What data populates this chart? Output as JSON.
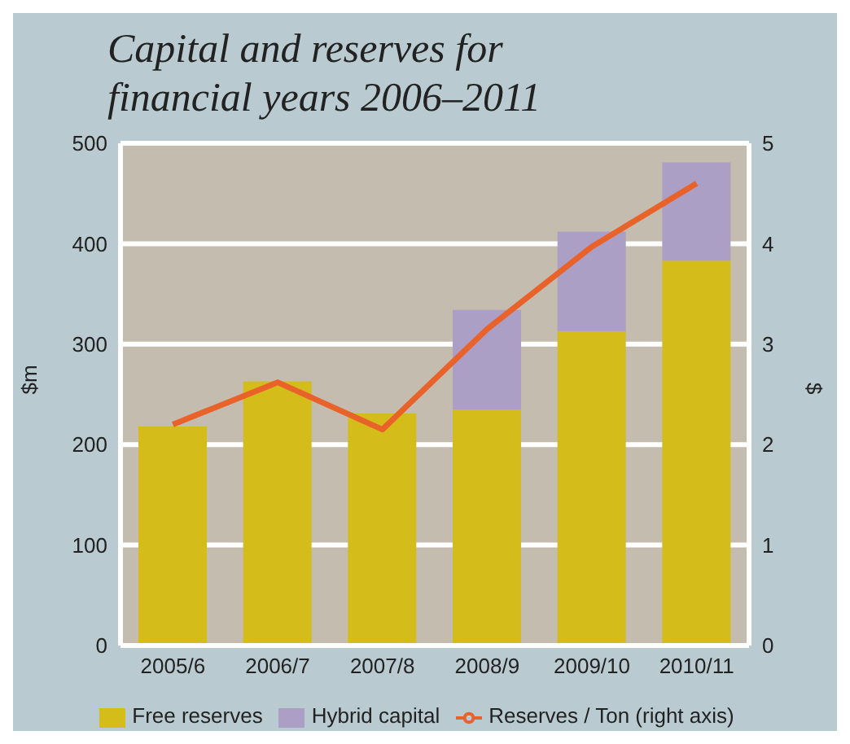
{
  "chart_data": {
    "type": "bar",
    "title": "Capital and reserves for financial years 2006–2011",
    "categories": [
      "2005/6",
      "2006/7",
      "2007/8",
      "2008/9",
      "2009/10",
      "2010/11"
    ],
    "stacked": true,
    "series": [
      {
        "name": "Free reserves",
        "color": "#d4bc1a",
        "values": [
          218,
          263,
          231,
          235,
          313,
          383
        ]
      },
      {
        "name": "Hybrid capital",
        "color": "#ab9fc6",
        "values": [
          null,
          null,
          null,
          99,
          99,
          98
        ]
      },
      {
        "name": "Reserves / Ton (right axis)",
        "type": "line",
        "axis": "y2",
        "color": "#e8622a",
        "values": [
          2.2,
          2.62,
          2.15,
          3.15,
          3.97,
          4.6
        ]
      }
    ],
    "ylabel": "$m",
    "y2label": "$",
    "ylim": [
      0,
      500
    ],
    "yticks": [
      0,
      100,
      200,
      300,
      400,
      500
    ],
    "y2lim": [
      0,
      5
    ],
    "y2ticks": [
      0,
      1,
      2,
      3,
      4,
      5
    ],
    "grid": "y",
    "legend": "bottom"
  }
}
